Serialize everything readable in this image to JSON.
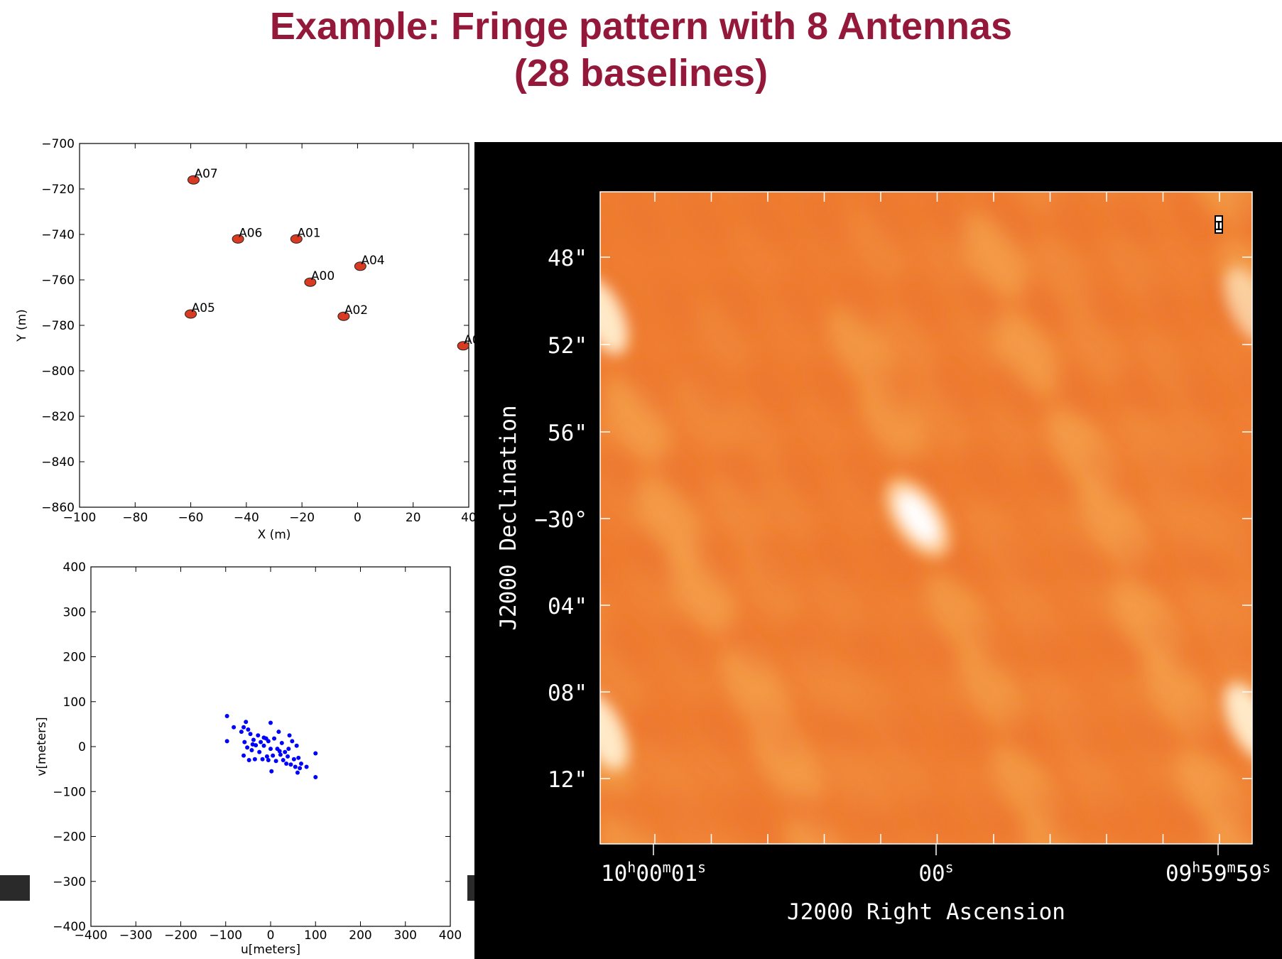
{
  "title": {
    "line1": "Example: Fringe pattern with 8 Antennas",
    "line2": "(28 baselines)"
  },
  "colors": {
    "title": "#93183a",
    "antenna_marker": "#d93a22",
    "uv_points": "#0000ff",
    "image_background": "#000000",
    "image_low": "#ef7d32",
    "image_high": "#ffffff"
  },
  "chart_data": [
    {
      "type": "scatter",
      "title": "",
      "xlabel": "X (m)",
      "ylabel": "Y (m)",
      "xlim": [
        -100,
        40
      ],
      "ylim": [
        -860,
        -700
      ],
      "xticks": [
        "−100",
        "−80",
        "−60",
        "−40",
        "−20",
        "0",
        "20",
        "40"
      ],
      "yticks": [
        "−700",
        "−720",
        "−740",
        "−760",
        "−780",
        "−800",
        "−820",
        "−840",
        "−860"
      ],
      "grid": false,
      "points": [
        {
          "label": "A07",
          "x": -59,
          "y": -716
        },
        {
          "label": "A06",
          "x": -43,
          "y": -742
        },
        {
          "label": "A01",
          "x": -22,
          "y": -742
        },
        {
          "label": "A04",
          "x": 1,
          "y": -754
        },
        {
          "label": "A00",
          "x": -17,
          "y": -761
        },
        {
          "label": "A05",
          "x": -60,
          "y": -775
        },
        {
          "label": "A02",
          "x": -5,
          "y": -776
        },
        {
          "label": "A0",
          "x": 38,
          "y": -789
        }
      ]
    },
    {
      "type": "scatter",
      "title": "",
      "xlabel": "u[meters]",
      "ylabel": "v[meters]",
      "xlim": [
        -400,
        400
      ],
      "ylim": [
        -400,
        400
      ],
      "xticks": [
        "−400",
        "−300",
        "−200",
        "−100",
        "0",
        "100",
        "200",
        "300",
        "400"
      ],
      "yticks": [
        "400",
        "300",
        "200",
        "100",
        "0",
        "−100",
        "−200",
        "−300",
        "−400"
      ],
      "grid": false,
      "points": [
        [
          -97,
          68
        ],
        [
          -97,
          12
        ],
        [
          -82,
          43
        ],
        [
          -65,
          33
        ],
        [
          -60,
          43
        ],
        [
          -55,
          55
        ],
        [
          -50,
          38
        ],
        [
          -45,
          28
        ],
        [
          -58,
          10
        ],
        [
          -52,
          -2
        ],
        [
          -42,
          -8
        ],
        [
          -38,
          15
        ],
        [
          -33,
          3
        ],
        [
          -28,
          25
        ],
        [
          -25,
          -12
        ],
        [
          -22,
          10
        ],
        [
          -18,
          -28
        ],
        [
          -15,
          2
        ],
        [
          -10,
          18
        ],
        [
          -8,
          -22
        ],
        [
          -5,
          12
        ],
        [
          0,
          53
        ],
        [
          2,
          -55
        ],
        [
          5,
          -20
        ],
        [
          8,
          18
        ],
        [
          12,
          -32
        ],
        [
          15,
          -5
        ],
        [
          18,
          33
        ],
        [
          22,
          -18
        ],
        [
          25,
          8
        ],
        [
          28,
          -30
        ],
        [
          32,
          -12
        ],
        [
          35,
          -38
        ],
        [
          38,
          -22
        ],
        [
          42,
          25
        ],
        [
          45,
          -40
        ],
        [
          48,
          12
        ],
        [
          52,
          -28
        ],
        [
          55,
          -45
        ],
        [
          58,
          2
        ],
        [
          60,
          -58
        ],
        [
          62,
          -25
        ],
        [
          65,
          -48
        ],
        [
          68,
          -38
        ],
        [
          -35,
          -28
        ],
        [
          -60,
          -20
        ],
        [
          -48,
          -30
        ],
        [
          80,
          -45
        ],
        [
          100,
          -15
        ],
        [
          100,
          -68
        ],
        [
          0,
          -5
        ],
        [
          -15,
          20
        ],
        [
          20,
          -10
        ],
        [
          -40,
          5
        ],
        [
          40,
          -5
        ],
        [
          -5,
          -30
        ]
      ]
    },
    {
      "type": "heatmap",
      "title": "",
      "xlabel": "J2000 Right Ascension",
      "ylabel": "J2000 Declination",
      "xtick_labels": [
        {
          "main": "10",
          "s1": "h",
          "m2": "00",
          "s2": "m",
          "m3": "01",
          "s3": "s"
        },
        {
          "main": "00",
          "s1": "s"
        },
        {
          "main": "09",
          "s1": "h",
          "m2": "59",
          "s2": "m",
          "m3": "59",
          "s3": "s"
        }
      ],
      "ytick_labels": [
        "48\"",
        "52\"",
        "56\"",
        "−30°",
        "04\"",
        "08\"",
        "12\""
      ],
      "stokes_label": "I",
      "peak": "center"
    }
  ]
}
